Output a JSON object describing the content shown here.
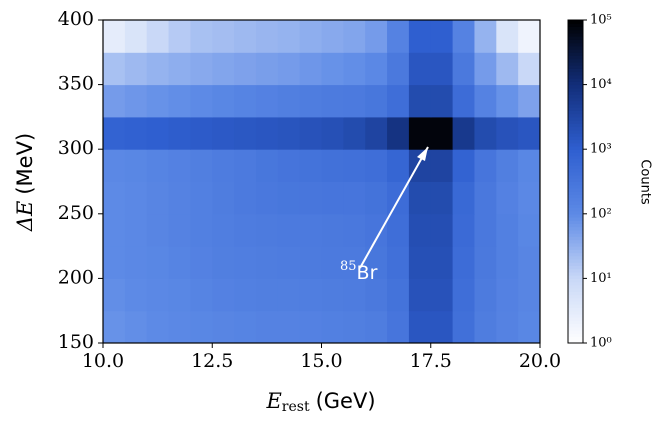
{
  "chart_data": {
    "type": "heatmap",
    "x_label": "E",
    "x_label_sub": "rest",
    "x_label_unit": "(GeV)",
    "y_label": "ΔE",
    "y_label_unit": "(MeV)",
    "colorbar_label": "Counts",
    "annotation": {
      "sup": "85",
      "text": "Br"
    },
    "xlim": [
      10,
      20
    ],
    "ylim": [
      150,
      400
    ],
    "xticks": [
      {
        "value": 10,
        "label": "10.0"
      },
      12.5,
      {
        "value": 15,
        "label": "15.0"
      },
      17.5,
      {
        "value": 20,
        "label": "20.0"
      }
    ],
    "yticks": [
      150,
      200,
      250,
      300,
      350,
      400
    ],
    "x_bins": [
      10,
      10.5,
      11,
      11.5,
      12,
      12.5,
      13,
      13.5,
      14,
      14.5,
      15,
      15.5,
      16,
      16.5,
      17,
      17.5,
      18,
      18.5,
      19,
      19.5,
      20
    ],
    "y_bins": [
      150,
      175,
      200,
      225,
      250,
      275,
      300,
      325,
      350,
      375,
      400
    ],
    "z": [
      [
        80,
        90,
        100,
        110,
        120,
        130,
        140,
        150,
        150,
        160,
        170,
        180,
        200,
        300,
        1500,
        1500,
        400,
        200,
        150,
        120
      ],
      [
        90,
        100,
        110,
        120,
        140,
        160,
        170,
        180,
        180,
        190,
        200,
        210,
        250,
        350,
        1800,
        1800,
        450,
        220,
        160,
        130
      ],
      [
        100,
        110,
        120,
        140,
        160,
        180,
        190,
        200,
        210,
        220,
        230,
        240,
        280,
        400,
        2000,
        2000,
        500,
        250,
        170,
        130
      ],
      [
        100,
        110,
        130,
        150,
        170,
        190,
        210,
        220,
        230,
        240,
        250,
        260,
        300,
        450,
        2200,
        2200,
        550,
        260,
        170,
        120
      ],
      [
        100,
        110,
        130,
        150,
        170,
        200,
        230,
        260,
        280,
        290,
        300,
        300,
        350,
        500,
        2500,
        2500,
        600,
        260,
        160,
        110
      ],
      [
        110,
        120,
        140,
        160,
        180,
        210,
        240,
        280,
        320,
        350,
        380,
        400,
        450,
        700,
        3500,
        3500,
        800,
        300,
        180,
        120
      ],
      [
        800,
        900,
        1000,
        1100,
        1200,
        1300,
        1400,
        1500,
        1600,
        1800,
        2000,
        2500,
        3500,
        8000,
        80000,
        80000,
        6000,
        2500,
        1800,
        1500
      ],
      [
        60,
        70,
        80,
        90,
        100,
        120,
        140,
        160,
        180,
        200,
        220,
        240,
        280,
        450,
        2500,
        2500,
        500,
        150,
        80,
        50
      ],
      [
        20,
        25,
        30,
        35,
        40,
        45,
        50,
        55,
        60,
        70,
        80,
        90,
        110,
        250,
        1500,
        1500,
        250,
        60,
        25,
        10
      ],
      [
        3,
        5,
        10,
        15,
        20,
        22,
        25,
        28,
        30,
        35,
        40,
        45,
        60,
        150,
        1000,
        1000,
        150,
        30,
        5,
        2
      ]
    ],
    "zlim": [
      1,
      100000
    ],
    "zscale": "log",
    "zticks": [
      {
        "value": 1,
        "label": "10⁰"
      },
      {
        "value": 10,
        "label": "10¹"
      },
      {
        "value": 100,
        "label": "10²"
      },
      {
        "value": 1000,
        "label": "10³"
      },
      {
        "value": 10000,
        "label": "10⁴"
      },
      {
        "value": 100000,
        "label": "10⁵"
      }
    ],
    "colormap": [
      "#ffffff",
      "#c9d8f7",
      "#5d8ae6",
      "#2f5fd0",
      "#122e7a",
      "#000000"
    ]
  }
}
